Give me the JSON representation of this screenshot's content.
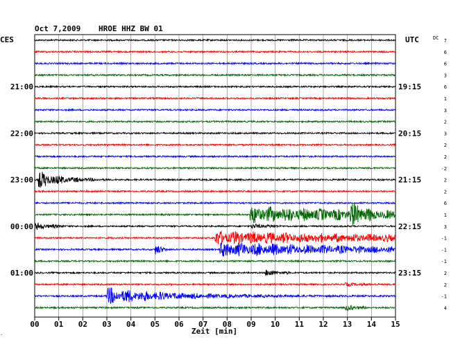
{
  "header": {
    "date": "Oct 7,2009",
    "station": "HROE HHZ BW 01",
    "left_zone": "CES",
    "right_zone": "UTC",
    "dc_label": "DC"
  },
  "colors": {
    "trace_cycle": [
      "#000000",
      "#ff0000",
      "#0000ff",
      "#006600"
    ],
    "grid": "#000000",
    "background": "#ffffff"
  },
  "chart_data": {
    "type": "line",
    "title": "",
    "xlabel": "Zeit [min]",
    "ylabel": "",
    "xlim": [
      0,
      15
    ],
    "x_ticks": [
      "00",
      "01",
      "02",
      "03",
      "04",
      "05",
      "06",
      "07",
      "08",
      "09",
      "10",
      "11",
      "12",
      "13",
      "14",
      "15"
    ],
    "grid": true,
    "row_count": 24,
    "left_time_labels": [
      {
        "row": 4,
        "label": "21:00"
      },
      {
        "row": 8,
        "label": "22:00"
      },
      {
        "row": 12,
        "label": "23:00"
      },
      {
        "row": 16,
        "label": "00:00"
      },
      {
        "row": 20,
        "label": "01:00"
      }
    ],
    "right_time_labels": [
      {
        "row": 4,
        "label": "19:15"
      },
      {
        "row": 8,
        "label": "20:15"
      },
      {
        "row": 12,
        "label": "21:15"
      },
      {
        "row": 16,
        "label": "22:15"
      },
      {
        "row": 20,
        "label": "23:15"
      }
    ],
    "dc_offsets": [
      "7",
      "6",
      "6",
      "3",
      "6",
      "1",
      "3",
      "2",
      "3",
      "2",
      "2",
      "-2",
      "2",
      "2",
      "6",
      "1",
      "3",
      "-1",
      "-1",
      "-1",
      "2",
      "2",
      "-1",
      "4"
    ],
    "events": [
      {
        "row": 12,
        "start_min": 0.15,
        "end_min": 3.0,
        "peak": 13,
        "decay": 1.0
      },
      {
        "row": 15,
        "start_min": 8.95,
        "end_min": 15.0,
        "peak": 12,
        "decay": 8.0
      },
      {
        "row": 15,
        "start_min": 13.1,
        "end_min": 14.0,
        "peak": 14,
        "decay": 0.6
      },
      {
        "row": 16,
        "start_min": 0.0,
        "end_min": 1.2,
        "peak": 5,
        "decay": 0.8
      },
      {
        "row": 16,
        "start_min": 9.0,
        "end_min": 10.3,
        "peak": 3,
        "decay": 1.0
      },
      {
        "row": 17,
        "start_min": 7.5,
        "end_min": 15.0,
        "peak": 10,
        "decay": 9.0
      },
      {
        "row": 18,
        "start_min": 5.0,
        "end_min": 5.5,
        "peak": 8,
        "decay": 0.3
      },
      {
        "row": 18,
        "start_min": 7.7,
        "end_min": 15.0,
        "peak": 11,
        "decay": 7.0
      },
      {
        "row": 20,
        "start_min": 9.6,
        "end_min": 10.6,
        "peak": 5,
        "decay": 0.6
      },
      {
        "row": 21,
        "start_min": 12.9,
        "end_min": 14.3,
        "peak": 2,
        "decay": 1.0
      },
      {
        "row": 22,
        "start_min": 3.0,
        "end_min": 15.0,
        "peak": 12,
        "decay": 2.8
      },
      {
        "row": 23,
        "start_min": 12.9,
        "end_min": 13.8,
        "peak": 4,
        "decay": 0.6
      }
    ]
  }
}
